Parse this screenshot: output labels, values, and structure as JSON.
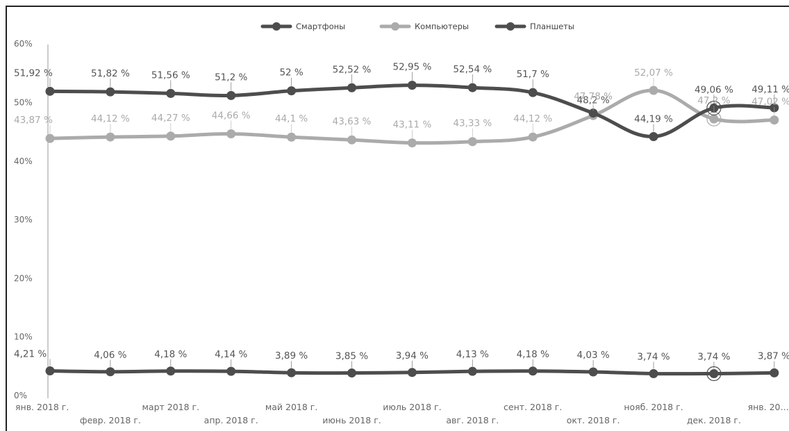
{
  "chart_data": {
    "type": "line",
    "title": "",
    "xlabel": "",
    "ylabel": "",
    "ylim": [
      0,
      60
    ],
    "yticks": [
      "0%",
      "10%",
      "20%",
      "30%",
      "40%",
      "50%",
      "60%"
    ],
    "grid": false,
    "legend_position": "top-center",
    "categories": [
      "янв. 2018 г.",
      "февр. 2018 г.",
      "март 2018 г.",
      "апр. 2018 г.",
      "май 2018 г.",
      "июнь 2018 г.",
      "июль 2018 г.",
      "авг. 2018 г.",
      "сент. 2018 г.",
      "окт. 2018 г.",
      "нояб. 2018 г.",
      "дек. 2018 г.",
      "янв. 20…"
    ],
    "series": [
      {
        "name": "Смартфоны",
        "color": "#4d4d4d",
        "values": [
          51.92,
          51.82,
          51.56,
          51.2,
          52,
          52.52,
          52.95,
          52.54,
          51.7,
          48.2,
          44.19,
          49.06,
          49.11
        ],
        "labels": [
          "51,92 %",
          "51,82 %",
          "51,56 %",
          "51,2 %",
          "52 %",
          "52,52 %",
          "52,95 %",
          "52,54 %",
          "51,7 %",
          "48,2 %",
          "44,19 %",
          "49,06 %",
          "49,11 %"
        ]
      },
      {
        "name": "Компьютеры",
        "color": "#ababab",
        "values": [
          43.87,
          44.12,
          44.27,
          44.66,
          44.1,
          43.63,
          43.11,
          43.33,
          44.12,
          47.78,
          52.07,
          47.2,
          47.02
        ],
        "labels": [
          "43,87 %",
          "44,12 %",
          "44,27 %",
          "44,66 %",
          "44,1 %",
          "43,63 %",
          "43,11 %",
          "43,33 %",
          "44,12 %",
          "47,78 %",
          "52,07 %",
          "47,2 %",
          "47,02 %"
        ]
      },
      {
        "name": "Планшеты",
        "color": "#4d4d4d",
        "values": [
          4.21,
          4.06,
          4.18,
          4.14,
          3.89,
          3.85,
          3.94,
          4.13,
          4.18,
          4.03,
          3.74,
          3.74,
          3.87
        ],
        "labels": [
          "4,21 %",
          "4,06 %",
          "4,18 %",
          "4,14 %",
          "3,89 %",
          "3,85 %",
          "3,94 %",
          "4,13 %",
          "4,18 %",
          "4,03 %",
          "3,74 %",
          "3,74 %",
          "3,87 %"
        ]
      }
    ]
  }
}
